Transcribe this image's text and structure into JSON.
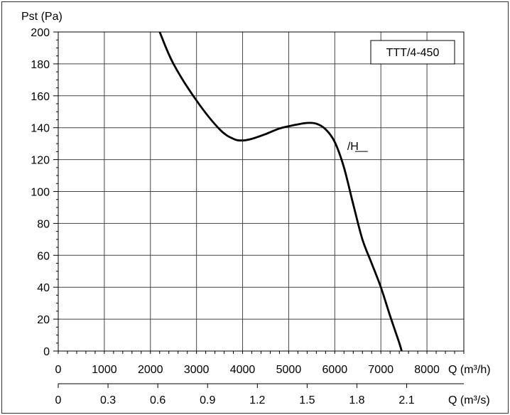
{
  "chart_data": {
    "type": "line",
    "ylabel": "Pst (Pa)",
    "ylim": [
      0,
      200
    ],
    "y_ticks": [
      "0",
      "20",
      "40",
      "60",
      "80",
      "100",
      "120",
      "140",
      "160",
      "180",
      "200"
    ],
    "xlabel_primary": "Q (m³/h)",
    "xlim_primary": [
      0,
      8800
    ],
    "x_ticks_primary": [
      "0",
      "1000",
      "2000",
      "3000",
      "4000",
      "5000",
      "6000",
      "7000",
      "8000"
    ],
    "xlabel_secondary": "Q (m³/s)",
    "x_ticks_secondary": [
      "0",
      "0.3",
      "0.6",
      "0.9",
      "1.2",
      "1.5",
      "1.8",
      "2.1"
    ],
    "grid": true,
    "model_label": "TTT/4-450",
    "series": [
      {
        "name": "/H",
        "x": [
          2200,
          2500,
          3000,
          3500,
          3800,
          4000,
          4200,
          4500,
          4800,
          5100,
          5400,
          5600,
          5800,
          6000,
          6200,
          6400,
          6600,
          6800,
          7000,
          7200,
          7400,
          7450
        ],
        "y": [
          200,
          180,
          157,
          139,
          133,
          132,
          133,
          136,
          139.5,
          141.5,
          143,
          142.5,
          139,
          131,
          115,
          92,
          70,
          55,
          40,
          22,
          5,
          0
        ]
      }
    ]
  }
}
